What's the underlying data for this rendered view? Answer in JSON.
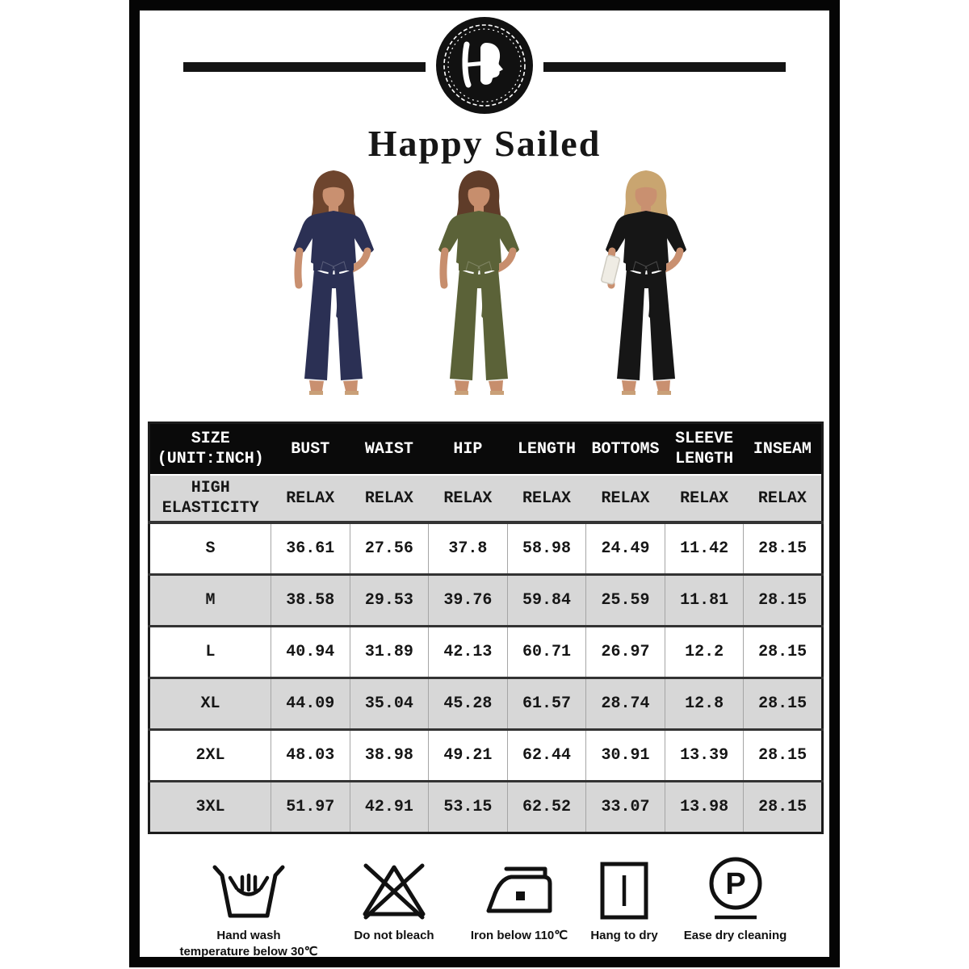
{
  "brand": {
    "title": "Happy Sailed"
  },
  "logo": {
    "monogram": "H",
    "description": "woman-profile-monogram",
    "bg": "#111111"
  },
  "models": [
    {
      "name": "jumpsuit-navy",
      "garment": "#2b3054",
      "hair": "#6e452e",
      "skin": "#c99070",
      "accessory": null
    },
    {
      "name": "jumpsuit-olive",
      "garment": "#5b6238",
      "hair": "#5f3c29",
      "skin": "#c78e6d",
      "accessory": null
    },
    {
      "name": "jumpsuit-black",
      "garment": "#161616",
      "hair": "#c9a570",
      "skin": "#c99070",
      "accessory": "#efece4"
    }
  ],
  "size_table": {
    "corner_label": "SIZE\n(UNIT:INCH)",
    "columns": [
      "BUST",
      "WAIST",
      "HIP",
      "LENGTH",
      "BOTTOMS",
      "SLEEVE\nLENGTH",
      "INSEAM"
    ],
    "elasticity_label": "HIGH\nELASTICITY",
    "relax_values": [
      "RELAX",
      "RELAX",
      "RELAX",
      "RELAX",
      "RELAX",
      "RELAX",
      "RELAX"
    ],
    "rows": [
      {
        "size": "S",
        "values": [
          "36.61",
          "27.56",
          "37.8",
          "58.98",
          "24.49",
          "11.42",
          "28.15"
        ]
      },
      {
        "size": "M",
        "values": [
          "38.58",
          "29.53",
          "39.76",
          "59.84",
          "25.59",
          "11.81",
          "28.15"
        ]
      },
      {
        "size": "L",
        "values": [
          "40.94",
          "31.89",
          "42.13",
          "60.71",
          "26.97",
          "12.2",
          "28.15"
        ]
      },
      {
        "size": "XL",
        "values": [
          "44.09",
          "35.04",
          "45.28",
          "61.57",
          "28.74",
          "12.8",
          "28.15"
        ]
      },
      {
        "size": "2XL",
        "values": [
          "48.03",
          "38.98",
          "49.21",
          "62.44",
          "30.91",
          "13.39",
          "28.15"
        ]
      },
      {
        "size": "3XL",
        "values": [
          "51.97",
          "42.91",
          "53.15",
          "62.52",
          "33.07",
          "13.98",
          "28.15"
        ]
      }
    ]
  },
  "care": {
    "items": [
      {
        "icon": "hand-wash-icon",
        "label": "Hand wash\ntemperature below 30℃"
      },
      {
        "icon": "do-not-bleach-icon",
        "label": "Do not bleach"
      },
      {
        "icon": "iron-icon",
        "label": "Iron below 110℃"
      },
      {
        "icon": "hang-to-dry-icon",
        "label": "Hang to dry"
      },
      {
        "icon": "dry-clean-icon",
        "label": "Ease dry cleaning",
        "glyph": "P"
      }
    ]
  },
  "colors": {
    "frame": "#050505",
    "table_header_bg": "#0a0a0a",
    "table_header_text": "#ffffff",
    "table_alt_row_bg": "#d7d7d7",
    "ink": "#111111"
  }
}
